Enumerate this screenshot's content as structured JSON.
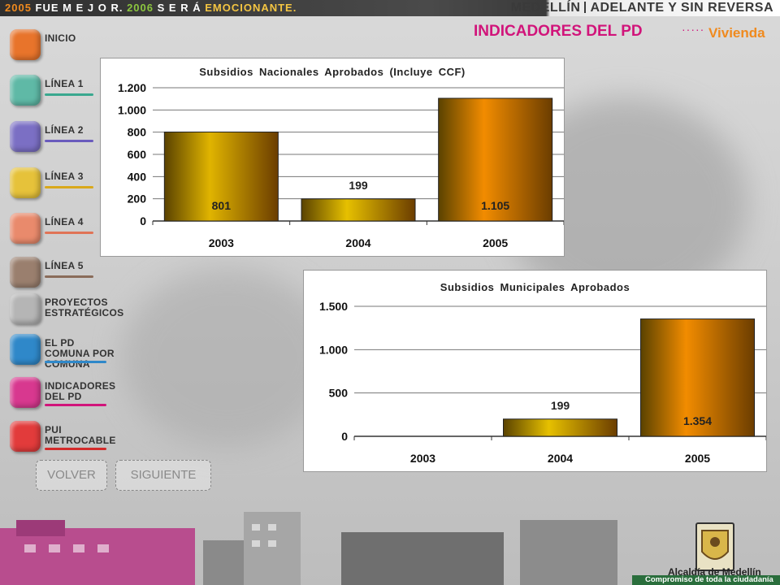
{
  "banner": {
    "slogan_y1": "2005",
    "slogan_w1": "FUE M E J O R.",
    "slogan_y2": "2006",
    "slogan_w2": "S E R Á",
    "slogan_em": "EMOCIONANTE.",
    "brand_a": "MEDELLÍN",
    "brand_b": "ADELANTE Y SIN REVERSA"
  },
  "header": {
    "title": "INDICADORES DEL PD",
    "dots": "·····",
    "subtitle": "Vivienda"
  },
  "sidebar": {
    "items": [
      {
        "label": "INICIO",
        "color": "#e8742b",
        "line": ""
      },
      {
        "label": "LÍNEA 1",
        "color": "#5fb9a6",
        "line": "#3aa88f"
      },
      {
        "label": "LÍNEA 2",
        "color": "#7b6fc4",
        "line": "#6a5bbd"
      },
      {
        "label": "LÍNEA 3",
        "color": "#e6c23a",
        "line": "#d9a81b"
      },
      {
        "label": "LÍNEA 4",
        "color": "#e98a6c",
        "line": "#e07457"
      },
      {
        "label": "LÍNEA 5",
        "color": "#9a7f6e",
        "line": "#8a6c5a"
      },
      {
        "label": "PROYECTOS ESTRATÉGICOS",
        "color": "#b5b5b5",
        "line": ""
      },
      {
        "label": "EL PD COMUNA POR COMUNA",
        "color": "#2f88c9",
        "line": "#2f88c9"
      },
      {
        "label": "INDICADORES DEL PD",
        "color": "#d8388f",
        "line": "#d1147a"
      },
      {
        "label": "PUI METROCABLE",
        "color": "#e23b3b",
        "line": "#d32b2b"
      }
    ],
    "back_label": "VOLVER",
    "next_label": "SIGUIENTE"
  },
  "footer": {
    "logo_name": "Alcaldía de Medellín",
    "logo_tagline": "Compromiso de toda la ciudadanía"
  },
  "chart_data": [
    {
      "type": "bar",
      "title": "Subsidios Nacionales Aprobados (Incluye CCF)",
      "categories": [
        "2003",
        "2004",
        "2005"
      ],
      "values": [
        801,
        199,
        1105
      ],
      "value_labels": [
        "801",
        "199",
        "1.105"
      ],
      "ylim": [
        0,
        1200
      ],
      "yticks": [
        0,
        200,
        400,
        600,
        800,
        1000,
        1200
      ],
      "ytick_labels": [
        "0",
        "200",
        "400",
        "600",
        "800",
        "1.000",
        "1.200"
      ],
      "xlabel": "",
      "ylabel": "",
      "grid": true,
      "colors": [
        "#e0b400",
        "#e6c000",
        "#f28c00"
      ]
    },
    {
      "type": "bar",
      "title": "Subsidios Municipales Aprobados",
      "categories": [
        "2003",
        "2004",
        "2005"
      ],
      "values": [
        0,
        199,
        1354
      ],
      "value_labels": [
        "",
        "199",
        "1.354"
      ],
      "ylim": [
        0,
        1500
      ],
      "yticks": [
        0,
        500,
        1000,
        1500
      ],
      "ytick_labels": [
        "0",
        "500",
        "1.000",
        "1.500"
      ],
      "xlabel": "",
      "ylabel": "",
      "grid": true,
      "colors": [
        "#e0b400",
        "#e6c000",
        "#f28c00"
      ]
    }
  ]
}
